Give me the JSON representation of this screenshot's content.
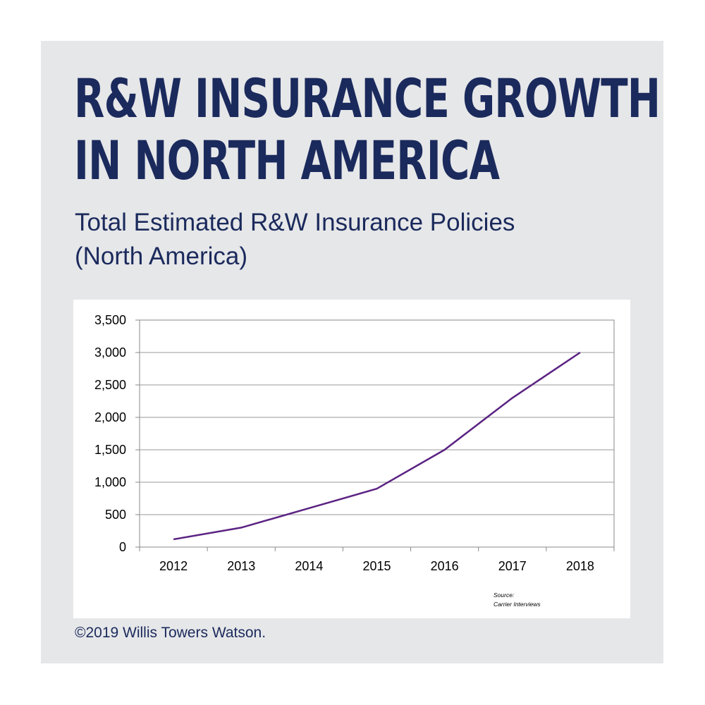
{
  "header": {
    "title_line1": "R&W INSURANCE GROWTH",
    "title_line2": "IN NORTH AMERICA",
    "subtitle_line1": "Total Estimated R&W Insurance Policies",
    "subtitle_line2": "(North America)"
  },
  "source": {
    "line1": "Source:",
    "line2": "Carrier Interviews"
  },
  "footer": {
    "copyright": "©2019 Willis Towers Watson."
  },
  "colors": {
    "brand_navy": "#1b2a5c",
    "series_line": "#5b2383",
    "panel_background": "#e6e7e9"
  },
  "chart_data": {
    "type": "line",
    "categories": [
      "2012",
      "2013",
      "2014",
      "2015",
      "2016",
      "2017",
      "2018"
    ],
    "series": [
      {
        "values": [
          120,
          300,
          600,
          900,
          1500,
          2300,
          3000
        ]
      }
    ],
    "yticks": [
      "0",
      "500",
      "1,000",
      "1,500",
      "2,000",
      "2,500",
      "3,000",
      "3,500"
    ],
    "ylim": [
      0,
      3500
    ],
    "grid": true,
    "legend": "none"
  }
}
